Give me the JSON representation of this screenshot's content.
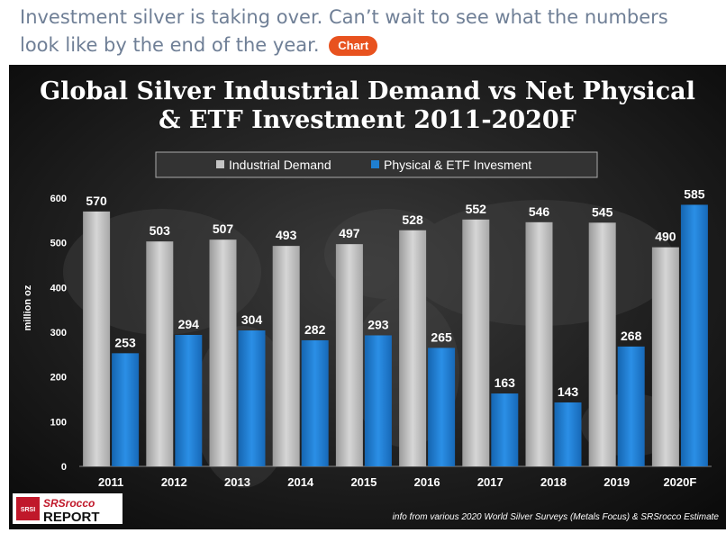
{
  "post": {
    "text": "Investment silver is taking over. Can’t wait to see what the numbers look like by the end of the year.",
    "badge": "Chart"
  },
  "colors": {
    "industrial": "#c4c4c4",
    "investment": "#1f7fd1",
    "badge": "#e8521f",
    "post_text": "#6f7f96"
  },
  "logo": {
    "top": "SRSrocco",
    "bottom": "REPORT",
    "seal": "SRSI"
  },
  "chart_data": {
    "type": "bar",
    "title_line1": "Global Silver Industrial Demand vs Net Physical",
    "title_line2": "& ETF Investment 2011-2020F",
    "ylabel": "million oz",
    "ylim": [
      0,
      600
    ],
    "yticks": [
      0,
      100,
      200,
      300,
      400,
      500,
      600
    ],
    "categories": [
      "2011",
      "2012",
      "2013",
      "2014",
      "2015",
      "2016",
      "2017",
      "2018",
      "2019",
      "2020F"
    ],
    "series": [
      {
        "name": "Industrial Demand",
        "values": [
          570,
          503,
          507,
          493,
          497,
          528,
          552,
          546,
          545,
          490
        ]
      },
      {
        "name": "Physical & ETF Invesment",
        "values": [
          253,
          294,
          304,
          282,
          293,
          265,
          163,
          143,
          268,
          585
        ]
      }
    ],
    "legend_position": "top",
    "grid": false,
    "source": "info from various 2020 World Silver Surveys (Metals Focus) & SRSrocco Estimate"
  }
}
